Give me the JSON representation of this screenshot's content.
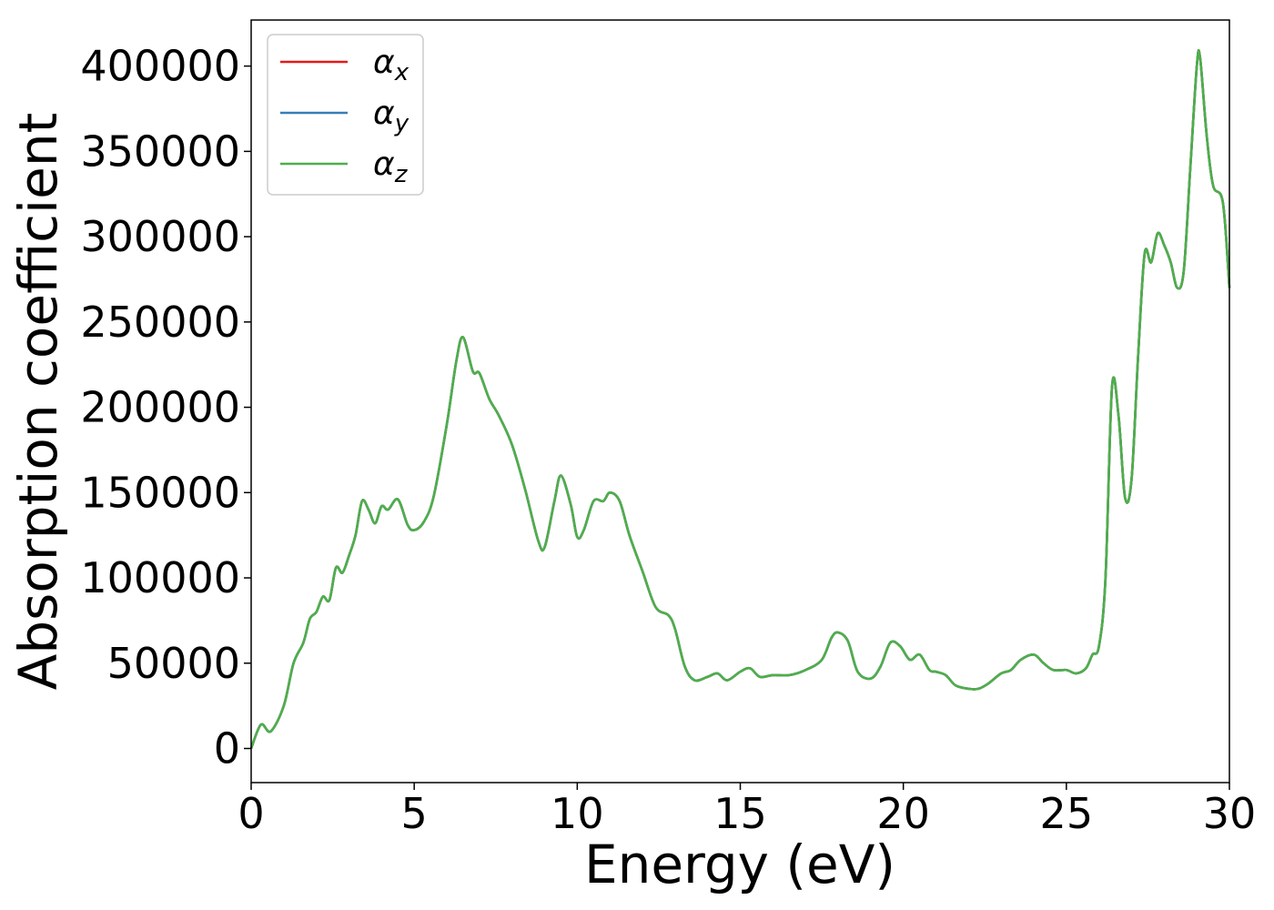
{
  "chart_data": {
    "type": "line",
    "title": "",
    "xlabel": "Energy (eV)",
    "ylabel": "Absorption coefficient",
    "xlim": [
      0,
      30
    ],
    "ylim": [
      -20000,
      427000
    ],
    "xticks": [
      0,
      5,
      10,
      15,
      20,
      25,
      30
    ],
    "xtick_labels": [
      "0",
      "5",
      "10",
      "15",
      "20",
      "25",
      "30"
    ],
    "yticks": [
      0,
      50000,
      100000,
      150000,
      200000,
      250000,
      300000,
      350000,
      400000
    ],
    "ytick_labels": [
      "0",
      "50000",
      "100000",
      "150000",
      "200000",
      "250000",
      "300000",
      "350000",
      "400000"
    ],
    "grid": false,
    "legend_position": "top-left",
    "x": [
      0.0,
      0.3,
      0.6,
      1.0,
      1.3,
      1.6,
      1.8,
      2.0,
      2.2,
      2.4,
      2.6,
      2.8,
      3.0,
      3.2,
      3.4,
      3.6,
      3.8,
      4.0,
      4.2,
      4.5,
      4.8,
      5.0,
      5.3,
      5.6,
      6.0,
      6.3,
      6.5,
      6.8,
      7.0,
      7.3,
      7.6,
      8.0,
      8.4,
      8.8,
      9.0,
      9.3,
      9.5,
      9.8,
      10.0,
      10.2,
      10.5,
      10.8,
      11.0,
      11.3,
      11.6,
      12.0,
      12.4,
      12.8,
      13.0,
      13.3,
      13.6,
      14.0,
      14.3,
      14.6,
      15.0,
      15.3,
      15.6,
      16.0,
      16.5,
      17.0,
      17.5,
      17.8,
      18.0,
      18.3,
      18.6,
      19.0,
      19.3,
      19.6,
      19.9,
      20.2,
      20.5,
      20.8,
      21.0,
      21.3,
      21.6,
      22.0,
      22.3,
      22.6,
      23.0,
      23.3,
      23.6,
      24.0,
      24.3,
      24.6,
      25.0,
      25.3,
      25.6,
      25.8,
      26.0,
      26.2,
      26.4,
      26.6,
      26.8,
      27.0,
      27.2,
      27.4,
      27.6,
      27.8,
      28.0,
      28.2,
      28.4,
      28.6,
      28.8,
      29.0,
      29.1,
      29.3,
      29.5,
      29.8,
      30.0
    ],
    "series": [
      {
        "name": "αx",
        "color": "#e41a1c",
        "values": [
          0,
          14000,
          10000,
          25000,
          50000,
          62000,
          76000,
          80000,
          89000,
          87000,
          106000,
          103000,
          113000,
          125000,
          145000,
          140000,
          132000,
          142000,
          140000,
          146000,
          131000,
          128000,
          133000,
          148000,
          190000,
          228000,
          241000,
          221000,
          220000,
          205000,
          195000,
          178000,
          152000,
          122000,
          118000,
          145000,
          160000,
          143000,
          124000,
          128000,
          145000,
          145000,
          150000,
          145000,
          125000,
          104000,
          83000,
          78000,
          70000,
          48000,
          40000,
          42000,
          44000,
          40000,
          45000,
          47000,
          42000,
          43000,
          43000,
          46000,
          52000,
          65000,
          68000,
          63000,
          45000,
          41000,
          48000,
          62000,
          60000,
          52000,
          55000,
          46000,
          45000,
          43000,
          37000,
          35000,
          35000,
          38000,
          44000,
          46000,
          52000,
          55000,
          50000,
          46000,
          46000,
          44000,
          47000,
          55000,
          60000,
          100000,
          212000,
          195000,
          147000,
          158000,
          230000,
          290000,
          285000,
          302000,
          295000,
          285000,
          270000,
          280000,
          340000,
          400000,
          405000,
          360000,
          330000,
          320000,
          270000
        ]
      },
      {
        "name": "αy",
        "color": "#377eb8",
        "values": [
          0,
          14000,
          10000,
          25000,
          50000,
          62000,
          76000,
          80000,
          89000,
          87000,
          106000,
          103000,
          113000,
          125000,
          145000,
          140000,
          132000,
          142000,
          140000,
          146000,
          131000,
          128000,
          133000,
          148000,
          190000,
          228000,
          241000,
          221000,
          220000,
          205000,
          195000,
          178000,
          152000,
          122000,
          118000,
          145000,
          160000,
          143000,
          124000,
          128000,
          145000,
          145000,
          150000,
          145000,
          125000,
          104000,
          83000,
          78000,
          70000,
          48000,
          40000,
          42000,
          44000,
          40000,
          45000,
          47000,
          42000,
          43000,
          43000,
          46000,
          52000,
          65000,
          68000,
          63000,
          45000,
          41000,
          48000,
          62000,
          60000,
          52000,
          55000,
          46000,
          45000,
          43000,
          37000,
          35000,
          35000,
          38000,
          44000,
          46000,
          52000,
          55000,
          50000,
          46000,
          46000,
          44000,
          47000,
          55000,
          60000,
          100000,
          212000,
          195000,
          147000,
          158000,
          230000,
          290000,
          285000,
          302000,
          295000,
          285000,
          270000,
          280000,
          340000,
          400000,
          405000,
          360000,
          330000,
          320000,
          270000
        ]
      },
      {
        "name": "αz",
        "color": "#4daf4a",
        "values": [
          0,
          14000,
          10000,
          25000,
          50000,
          62000,
          76000,
          80000,
          89000,
          87000,
          106000,
          103000,
          113000,
          125000,
          145000,
          140000,
          132000,
          142000,
          140000,
          146000,
          131000,
          128000,
          133000,
          148000,
          190000,
          228000,
          241000,
          221000,
          220000,
          205000,
          195000,
          178000,
          152000,
          122000,
          118000,
          145000,
          160000,
          143000,
          124000,
          128000,
          145000,
          145000,
          150000,
          145000,
          125000,
          104000,
          83000,
          78000,
          70000,
          48000,
          40000,
          42000,
          44000,
          40000,
          45000,
          47000,
          42000,
          43000,
          43000,
          46000,
          52000,
          65000,
          68000,
          63000,
          45000,
          41000,
          48000,
          62000,
          60000,
          52000,
          55000,
          46000,
          45000,
          43000,
          37000,
          35000,
          35000,
          38000,
          44000,
          46000,
          52000,
          55000,
          50000,
          46000,
          46000,
          44000,
          47000,
          55000,
          60000,
          100000,
          212000,
          195000,
          147000,
          158000,
          230000,
          290000,
          285000,
          302000,
          295000,
          285000,
          270000,
          280000,
          340000,
          400000,
          405000,
          360000,
          330000,
          320000,
          270000
        ]
      }
    ],
    "legend": [
      {
        "symbol": "α",
        "sub": "x",
        "color": "#e41a1c"
      },
      {
        "symbol": "α",
        "sub": "y",
        "color": "#377eb8"
      },
      {
        "symbol": "α",
        "sub": "z",
        "color": "#4daf4a"
      }
    ]
  }
}
